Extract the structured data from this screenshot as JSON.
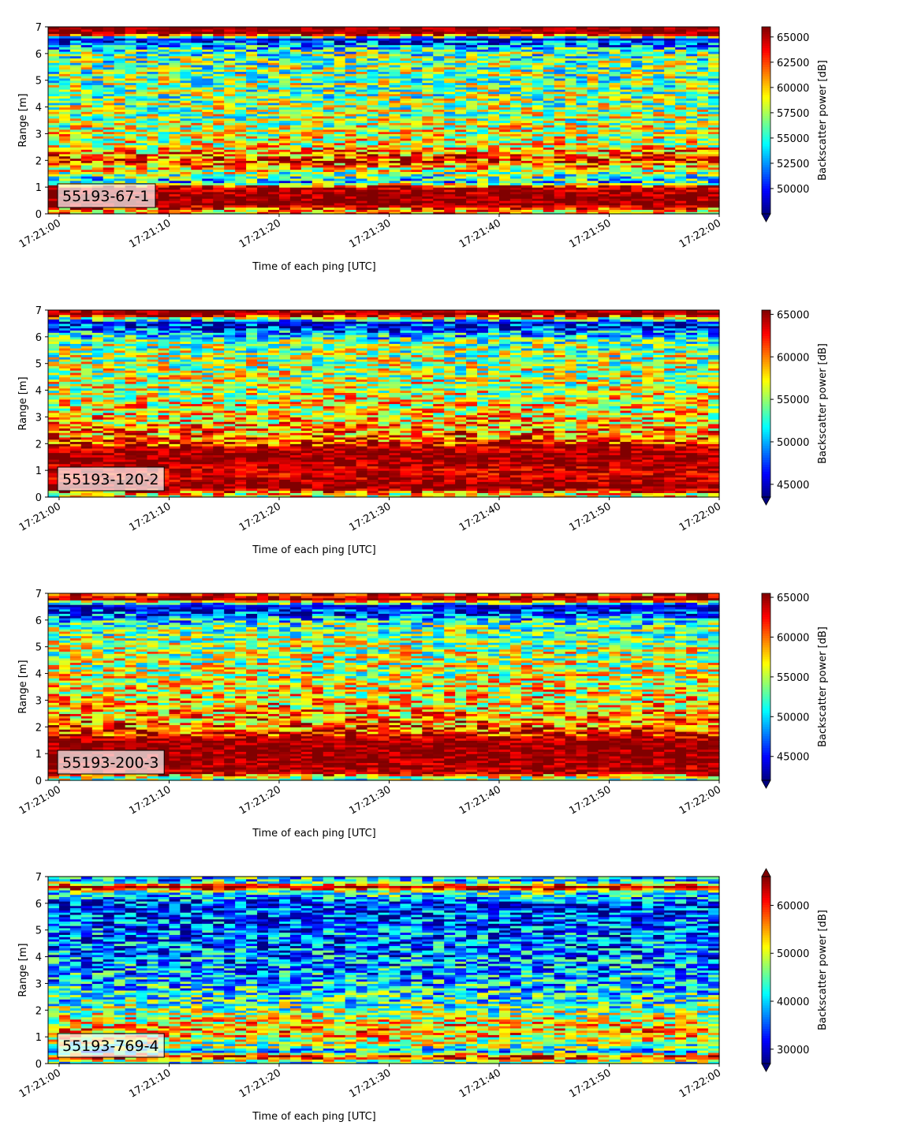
{
  "chart_data": [
    {
      "type": "heatmap",
      "panel_label": "55193-67-1",
      "xlabel": "Time of each ping [UTC]",
      "ylabel": "Range [m]",
      "x_ticks": [
        "17:21:00",
        "17:21:10",
        "17:21:20",
        "17:21:30",
        "17:21:40",
        "17:21:50",
        "17:22:00"
      ],
      "y_ticks": [
        0,
        1,
        2,
        3,
        4,
        5,
        6,
        7
      ],
      "xlim": [
        "17:20:59",
        "17:22:00"
      ],
      "ylim": [
        0,
        7
      ],
      "colorbar": {
        "label": "Backscatter power [dB]",
        "vmin": 47500,
        "vmax": 66000,
        "ticks": [
          50000,
          52500,
          55000,
          57500,
          60000,
          62500,
          65000
        ],
        "tick_labels": [
          "50000",
          "52500",
          "55000",
          "57500",
          "60000",
          "62500",
          "65000"
        ],
        "extend": "min",
        "colormap": "jet"
      },
      "profile": [
        {
          "range": 0.15,
          "level": 0.7
        },
        {
          "range": 0.35,
          "level": 1.0
        },
        {
          "range": 1.0,
          "level": 0.95
        },
        {
          "range": 1.2,
          "level": 0.35
        },
        {
          "range": 1.5,
          "level": 0.5
        },
        {
          "range": 2.0,
          "level": 0.85
        },
        {
          "range": 2.6,
          "level": 0.6
        },
        {
          "range": 3.5,
          "level": 0.55
        },
        {
          "range": 4.5,
          "level": 0.5
        },
        {
          "range": 5.5,
          "level": 0.5
        },
        {
          "range": 6.1,
          "level": 0.45
        },
        {
          "range": 6.55,
          "level": 0.1
        },
        {
          "range": 6.75,
          "level": 1.0
        },
        {
          "range": 7.0,
          "level": 1.0
        }
      ]
    },
    {
      "type": "heatmap",
      "panel_label": "55193-120-2",
      "xlabel": "Time of each ping [UTC]",
      "ylabel": "Range [m]",
      "x_ticks": [
        "17:21:00",
        "17:21:10",
        "17:21:20",
        "17:21:30",
        "17:21:40",
        "17:21:50",
        "17:22:00"
      ],
      "y_ticks": [
        0,
        1,
        2,
        3,
        4,
        5,
        6,
        7
      ],
      "xlim": [
        "17:20:59",
        "17:22:00"
      ],
      "ylim": [
        0,
        7
      ],
      "colorbar": {
        "label": "Backscatter power [dB]",
        "vmin": 43500,
        "vmax": 65500,
        "ticks": [
          45000,
          50000,
          55000,
          60000,
          65000
        ],
        "tick_labels": [
          "45000",
          "50000",
          "55000",
          "60000",
          "65000"
        ],
        "extend": "min",
        "colormap": "jet"
      },
      "profile": [
        {
          "range": 0.1,
          "level": 0.6
        },
        {
          "range": 0.35,
          "level": 1.0
        },
        {
          "range": 0.9,
          "level": 0.9
        },
        {
          "range": 1.5,
          "level": 1.0
        },
        {
          "range": 1.8,
          "level": 0.95
        },
        {
          "range": 2.3,
          "level": 0.75
        },
        {
          "range": 3.0,
          "level": 0.65
        },
        {
          "range": 4.0,
          "level": 0.58
        },
        {
          "range": 5.0,
          "level": 0.55
        },
        {
          "range": 5.8,
          "level": 0.5
        },
        {
          "range": 6.3,
          "level": 0.2
        },
        {
          "range": 6.55,
          "level": 0.1
        },
        {
          "range": 6.85,
          "level": 1.0
        },
        {
          "range": 7.0,
          "level": 0.95
        }
      ]
    },
    {
      "type": "heatmap",
      "panel_label": "55193-200-3",
      "xlabel": "Time of each ping [UTC]",
      "ylabel": "Range [m]",
      "x_ticks": [
        "17:21:00",
        "17:21:10",
        "17:21:20",
        "17:21:30",
        "17:21:40",
        "17:21:50",
        "17:22:00"
      ],
      "y_ticks": [
        0,
        1,
        2,
        3,
        4,
        5,
        6,
        7
      ],
      "xlim": [
        "17:20:59",
        "17:22:00"
      ],
      "ylim": [
        0,
        7
      ],
      "colorbar": {
        "label": "Backscatter power [dB]",
        "vmin": 42000,
        "vmax": 65500,
        "ticks": [
          45000,
          50000,
          55000,
          60000,
          65000
        ],
        "tick_labels": [
          "45000",
          "50000",
          "55000",
          "60000",
          "65000"
        ],
        "extend": "min",
        "colormap": "jet"
      },
      "profile": [
        {
          "range": 0.1,
          "level": 0.5
        },
        {
          "range": 0.3,
          "level": 0.95
        },
        {
          "range": 0.9,
          "level": 1.0
        },
        {
          "range": 1.4,
          "level": 1.0
        },
        {
          "range": 1.8,
          "level": 0.85
        },
        {
          "range": 2.3,
          "level": 0.72
        },
        {
          "range": 3.0,
          "level": 0.65
        },
        {
          "range": 4.0,
          "level": 0.57
        },
        {
          "range": 5.0,
          "level": 0.55
        },
        {
          "range": 5.8,
          "level": 0.48
        },
        {
          "range": 6.3,
          "level": 0.15
        },
        {
          "range": 6.55,
          "level": 0.08
        },
        {
          "range": 6.8,
          "level": 1.0
        },
        {
          "range": 7.0,
          "level": 0.75
        }
      ]
    },
    {
      "type": "heatmap",
      "panel_label": "55193-769-4",
      "xlabel": "Time of each ping [UTC]",
      "ylabel": "Range [m]",
      "x_ticks": [
        "17:21:00",
        "17:21:10",
        "17:21:20",
        "17:21:30",
        "17:21:40",
        "17:21:50",
        "17:22:00"
      ],
      "y_ticks": [
        0,
        1,
        2,
        3,
        4,
        5,
        6,
        7
      ],
      "xlim": [
        "17:20:59",
        "17:22:00"
      ],
      "ylim": [
        0,
        7
      ],
      "colorbar": {
        "label": "Backscatter power [dB]",
        "vmin": 27000,
        "vmax": 66000,
        "ticks": [
          30000,
          40000,
          50000,
          60000
        ],
        "tick_labels": [
          "30000",
          "40000",
          "50000",
          "60000"
        ],
        "extend": "both",
        "colormap": "jet"
      },
      "profile": [
        {
          "range": 0.1,
          "level": 0.45
        },
        {
          "range": 0.25,
          "level": 0.95
        },
        {
          "range": 0.45,
          "level": 0.35
        },
        {
          "range": 0.8,
          "level": 0.55
        },
        {
          "range": 1.2,
          "level": 0.72
        },
        {
          "range": 1.6,
          "level": 0.62
        },
        {
          "range": 2.2,
          "level": 0.45
        },
        {
          "range": 3.0,
          "level": 0.32
        },
        {
          "range": 4.0,
          "level": 0.25
        },
        {
          "range": 5.0,
          "level": 0.22
        },
        {
          "range": 6.0,
          "level": 0.15
        },
        {
          "range": 6.45,
          "level": 0.45
        },
        {
          "range": 6.6,
          "level": 1.0
        },
        {
          "range": 6.85,
          "level": 0.3
        },
        {
          "range": 7.0,
          "level": 0.4
        }
      ]
    }
  ]
}
